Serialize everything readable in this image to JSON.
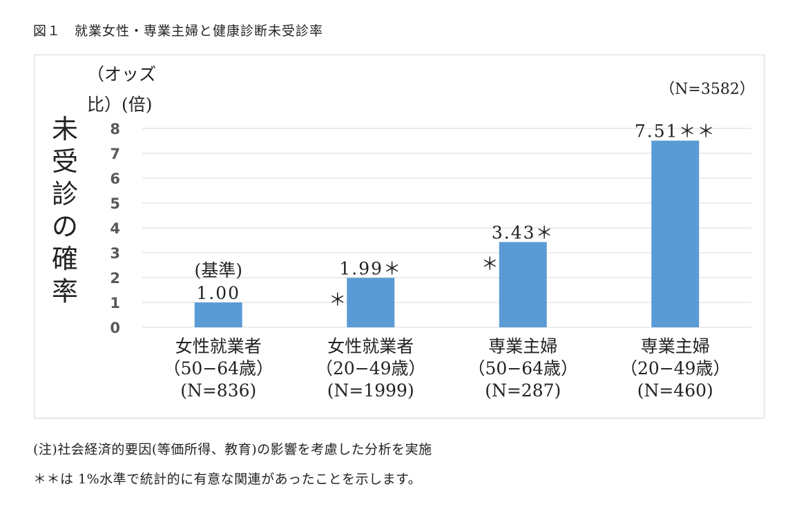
{
  "figure_title": "図１　就業女性・専業主婦と健康診断未受診率",
  "notes": [
    "(注)社会経済的要因(等価所得、教育)の影響を考慮した分析を実施",
    "＊＊は 1%水準で統計的に有意な関連があったことを示します。"
  ],
  "colors": {
    "bar": "#5b9bd5",
    "grid": "#d9d9d9",
    "axis_text": "#595959",
    "text": "#222222"
  },
  "chart_data": {
    "type": "bar",
    "ylabel": "未受診の確率",
    "unit_label": "（オッズ比）(倍)",
    "sample_total": "（N=3582）",
    "ylim": [
      0,
      8
    ],
    "yticks": [
      "0",
      "1",
      "2",
      "3",
      "4",
      "5",
      "6",
      "7",
      "8"
    ],
    "grid": true,
    "categories": [
      [
        "女性就業者",
        "（50−64歳）",
        "(N=836)"
      ],
      [
        "女性就業者",
        "（20−49歳）",
        "(N=1999)"
      ],
      [
        "専業主婦",
        "（50−64歳）",
        "(N=287)"
      ],
      [
        "専業主婦",
        "（20−49歳）",
        "(N=460)"
      ]
    ],
    "values": [
      1.0,
      1.99,
      3.43,
      7.51
    ],
    "value_labels": [
      "1.00",
      "1.99＊",
      "3.43＊",
      "7.51＊＊"
    ],
    "annotations": [
      "(基準)",
      "＊",
      "＊",
      ""
    ]
  }
}
